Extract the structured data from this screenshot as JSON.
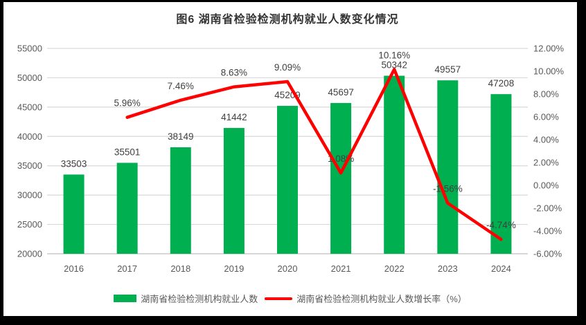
{
  "title": "图6 湖南省检验检测机构就业人数变化情况",
  "colors": {
    "bar": "#00B050",
    "line": "#FF0000",
    "grid": "#D9D9D9",
    "axis_line": "#BFBFBF",
    "axis_text": "#595959",
    "label_text": "#404040",
    "background": "#FFFFFF",
    "frame": "#000000"
  },
  "legend": [
    {
      "label": "湖南省检验检测机构就业人数",
      "type": "bar"
    },
    {
      "label": "湖南省检验检测机构就业人数增长率（%）",
      "type": "line"
    }
  ],
  "chart_data": {
    "type": "bar+line combo",
    "title": "图6 湖南省检验检测机构就业人数变化情况",
    "categories": [
      "2016",
      "2017",
      "2018",
      "2019",
      "2020",
      "2021",
      "2022",
      "2023",
      "2024"
    ],
    "series": [
      {
        "name": "湖南省检验检测机构就业人数",
        "type": "bar",
        "axis": "left",
        "values": [
          33503,
          35501,
          38149,
          41442,
          45209,
          45697,
          50342,
          49557,
          47208
        ],
        "labels": [
          "33503",
          "35501",
          "38149",
          "41442",
          "45209",
          "45697",
          "50342",
          "49557",
          "47208"
        ]
      },
      {
        "name": "湖南省检验检测机构就业人数增长率（%）",
        "type": "line",
        "axis": "right",
        "values": [
          null,
          5.96,
          7.46,
          8.63,
          9.09,
          1.08,
          10.16,
          -1.56,
          -4.74
        ],
        "labels": [
          null,
          "5.96%",
          "7.46%",
          "8.63%",
          "9.09%",
          "1.08%",
          "10.16%",
          "-1.56%",
          "-4.74%"
        ]
      }
    ],
    "left_axis": {
      "min": 20000,
      "max": 55000,
      "step": 5000,
      "ticks": [
        "55000",
        "50000",
        "45000",
        "40000",
        "35000",
        "30000",
        "25000",
        "20000"
      ]
    },
    "right_axis": {
      "min": -6,
      "max": 12,
      "step": 2,
      "ticks": [
        "12.00%",
        "10.00%",
        "8.00%",
        "6.00%",
        "4.00%",
        "2.00%",
        "0.00%",
        "-2.00%",
        "-4.00%",
        "-6.00%"
      ]
    },
    "grid": "horizontal",
    "legend_position": "bottom"
  }
}
